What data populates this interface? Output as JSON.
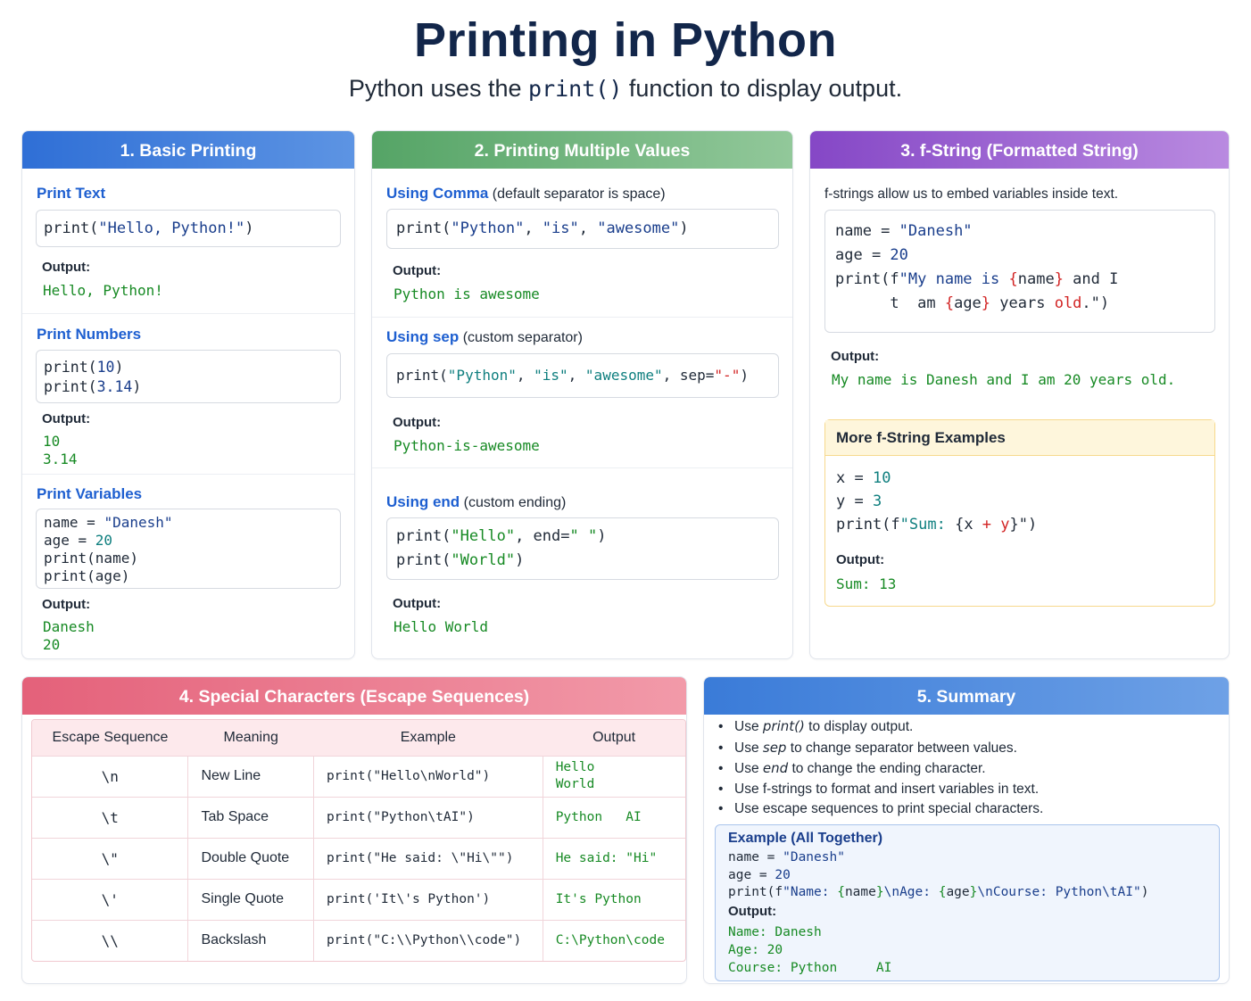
{
  "header": {
    "title": "Printing in Python",
    "subtitle_pre": "Python uses the ",
    "subtitle_code": "print()",
    "subtitle_post": " function to display output."
  },
  "card1": {
    "title": "1. Basic Printing",
    "sections": [
      {
        "title": "Print Text",
        "code": [
          "print(\"Hello, Python!\")"
        ],
        "output_label": "Output:",
        "output": "Hello, Python!"
      },
      {
        "title": "Print Numbers",
        "code": [
          "print(10)",
          "print(3.14)"
        ],
        "output_label": "Output:",
        "output": "10\n3.14"
      },
      {
        "title": "Print Variables",
        "code": [
          "name = \"Danesh\"",
          "age = 20",
          "print(name)",
          "print(age)"
        ],
        "output_label": "Output:",
        "output": "Danesh\n20"
      }
    ]
  },
  "card2": {
    "title": "2. Printing Multiple Values",
    "sections": [
      {
        "title": "Using Comma",
        "note": " (default separator is space)",
        "code": "print(\"Python\", \"is\", \"awesome\")",
        "output_label": "Output:",
        "output": "Python is awesome"
      },
      {
        "title": "Using sep",
        "note": " (custom separator)",
        "code": "print(\"Python\", \"is\", \"awesome\", sep=\"-\")",
        "output_label": "Output:",
        "output": "Python-is-awesome"
      },
      {
        "title": "Using end",
        "note": " (custom ending)",
        "code": "print(\"Hello\", end=\" \")\nprint(\"World\")",
        "output_label": "Output:",
        "output": "Hello World"
      }
    ]
  },
  "card3": {
    "title": "3. f-String (Formatted String)",
    "intro": "f-strings allow us to embed variables inside text.",
    "code": "name = \"Danesh\"\nage = 20\nprint(f\"My name is {name} and I\n      t  am {age} years old.\")",
    "output_label": "Output:",
    "output": "My name is Danesh and I am 20 years old.",
    "more": {
      "title": "More f-String Examples",
      "code": "x = 10\ny = 3\nprint(f\"Sum: {x + y}\")",
      "output_label": "Output:",
      "output": "Sum: 13"
    }
  },
  "card4": {
    "title": "4. Special Characters (Escape Sequences)",
    "headers": [
      "Escape Sequence",
      "Meaning",
      "Example",
      "Output"
    ],
    "rows": [
      {
        "seq": "\\n",
        "meaning": "New Line",
        "example": "print(\"Hello\\nWorld\")",
        "output": "Hello\nWorld"
      },
      {
        "seq": "\\t",
        "meaning": "Tab Space",
        "example": "print(\"Python\\tAI\")",
        "output": "Python   AI"
      },
      {
        "seq": "\\\"",
        "meaning": "Double Quote",
        "example": "print(\"He said: \\\"Hi\\\"\")",
        "output": "He said: \"Hi\""
      },
      {
        "seq": "\\'",
        "meaning": "Single Quote",
        "example": "print('It\\'s Python')",
        "output": "It's Python"
      },
      {
        "seq": "\\\\",
        "meaning": "Backslash",
        "example": "print(\"C:\\\\Python\\\\code\")",
        "output": "C:\\Python\\code"
      }
    ]
  },
  "card5": {
    "title": "5. Summary",
    "items": [
      {
        "pre": "Use ",
        "em": "print()",
        "post": " to display output."
      },
      {
        "pre": "Use ",
        "em": "sep",
        "post": " to change separator between values."
      },
      {
        "pre": "Use ",
        "em": "end",
        "post": " to change the ending character."
      },
      {
        "pre": "Use ",
        "em": "",
        "post": "f-strings to format and insert variables in text."
      },
      {
        "pre": "Use ",
        "em": "",
        "post": "escape sequences to print special characters."
      }
    ],
    "example": {
      "title": "Example (All Together)",
      "code": "name = \"Danesh\"\nage = 20\nprint(f\"Name: {name}\\nAge: {age}\\nCourse: Python\\tAI\")",
      "output_label": "Output:",
      "output": "Name: Danesh\nAge: 20\nCourse: Python     AI"
    }
  }
}
